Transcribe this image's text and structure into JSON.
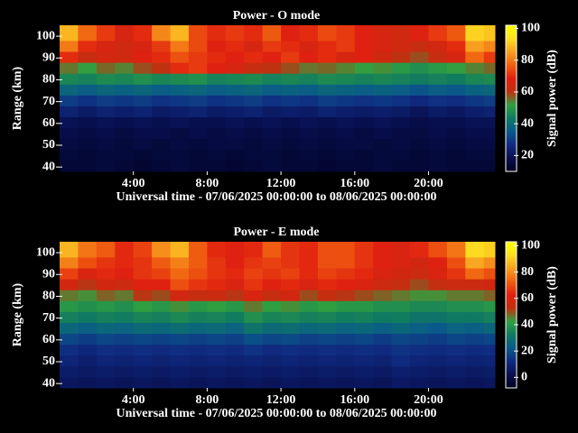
{
  "chart_data": [
    {
      "type": "heatmap",
      "title": "Power - O mode",
      "xlabel": "Universal time - 07/06/2025 00:00:00 to 08/06/2025 00:00:00",
      "ylabel": "Range (km)",
      "colorbar_label": "Signal power (dB)",
      "x_edges": [
        0,
        1,
        2,
        3,
        4,
        5,
        6,
        7,
        8,
        9,
        10,
        11,
        12,
        13,
        14,
        15,
        16,
        17,
        18,
        19,
        20,
        21,
        22,
        23,
        23.6
      ],
      "y_edges": [
        38,
        43,
        48,
        53,
        58,
        63,
        68,
        73,
        78,
        83,
        88,
        93,
        98,
        105
      ],
      "values": [
        [
          14,
          14,
          15,
          14,
          13,
          14,
          15,
          14,
          14,
          13,
          14,
          15,
          14,
          14,
          13,
          14,
          14,
          15,
          14,
          14,
          15,
          14,
          14,
          14
        ],
        [
          15,
          14,
          15,
          15,
          14,
          15,
          15,
          14,
          15,
          14,
          15,
          15,
          14,
          15,
          14,
          15,
          14,
          15,
          15,
          14,
          15,
          14,
          15,
          15
        ],
        [
          16,
          15,
          16,
          15,
          16,
          15,
          16,
          15,
          16,
          16,
          15,
          16,
          15,
          16,
          15,
          16,
          16,
          15,
          16,
          15,
          16,
          15,
          16,
          16
        ],
        [
          17,
          16,
          17,
          16,
          17,
          17,
          16,
          17,
          16,
          17,
          16,
          17,
          16,
          17,
          16,
          17,
          16,
          17,
          16,
          16,
          17,
          16,
          17,
          17
        ],
        [
          19,
          18,
          19,
          18,
          19,
          18,
          19,
          18,
          18,
          19,
          18,
          19,
          18,
          19,
          18,
          19,
          18,
          19,
          18,
          17,
          18,
          18,
          19,
          19
        ],
        [
          24,
          22,
          24,
          23,
          24,
          22,
          23,
          24,
          22,
          23,
          24,
          22,
          23,
          22,
          24,
          23,
          22,
          23,
          22,
          20,
          22,
          21,
          23,
          24
        ],
        [
          30,
          28,
          30,
          29,
          30,
          28,
          29,
          30,
          28,
          29,
          30,
          28,
          29,
          28,
          30,
          29,
          28,
          29,
          28,
          26,
          28,
          27,
          29,
          30
        ],
        [
          38,
          36,
          38,
          37,
          38,
          36,
          37,
          38,
          36,
          37,
          38,
          36,
          37,
          36,
          38,
          37,
          36,
          37,
          36,
          34,
          36,
          35,
          37,
          38
        ],
        [
          46,
          45,
          47,
          46,
          48,
          46,
          47,
          48,
          45,
          46,
          47,
          45,
          46,
          45,
          47,
          46,
          45,
          46,
          45,
          44,
          45,
          44,
          46,
          47
        ],
        [
          55,
          52,
          56,
          54,
          58,
          60,
          70,
          72,
          68,
          66,
          62,
          60,
          58,
          55,
          56,
          54,
          52,
          53,
          50,
          48,
          50,
          52,
          54,
          56
        ],
        [
          70,
          62,
          65,
          64,
          68,
          70,
          75,
          72,
          70,
          68,
          70,
          68,
          72,
          68,
          70,
          66,
          68,
          64,
          60,
          58,
          62,
          66,
          78,
          72
        ],
        [
          80,
          70,
          66,
          64,
          66,
          72,
          80,
          74,
          68,
          70,
          66,
          72,
          70,
          66,
          70,
          72,
          68,
          66,
          64,
          62,
          65,
          70,
          85,
          82
        ],
        [
          88,
          78,
          72,
          66,
          70,
          82,
          88,
          74,
          70,
          72,
          70,
          76,
          68,
          70,
          74,
          72,
          68,
          66,
          64,
          68,
          72,
          76,
          92,
          90
        ]
      ],
      "xlim": [
        0,
        23.6
      ],
      "ylim": [
        38,
        105
      ],
      "clim": [
        10,
        102
      ],
      "xticks": [
        {
          "value": 4,
          "label": "4:00"
        },
        {
          "value": 8,
          "label": "8:00"
        },
        {
          "value": 12,
          "label": "12:00"
        },
        {
          "value": 16,
          "label": "16:00"
        },
        {
          "value": 20,
          "label": "20:00"
        }
      ],
      "yticks": [
        40,
        50,
        60,
        70,
        80,
        90,
        100
      ],
      "cticks": [
        20,
        40,
        60,
        80,
        100
      ],
      "colormap": [
        "#00001e",
        "#081050",
        "#102a80",
        "#0a5a8a",
        "#107a60",
        "#30a040",
        "#c03010",
        "#e02010",
        "#f06010",
        "#f8a020",
        "#ffe020",
        "#ffff00"
      ]
    },
    {
      "type": "heatmap",
      "title": "Power - E mode",
      "xlabel": "Universal time - 07/06/2025 00:00:00 to 08/06/2025 00:00:00",
      "ylabel": "Range (km)",
      "colorbar_label": "Signal power (dB)",
      "x_edges": [
        0,
        1,
        2,
        3,
        4,
        5,
        6,
        7,
        8,
        9,
        10,
        11,
        12,
        13,
        14,
        15,
        16,
        17,
        18,
        19,
        20,
        21,
        22,
        23,
        23.6
      ],
      "y_edges": [
        38,
        43,
        48,
        53,
        58,
        63,
        68,
        73,
        78,
        83,
        88,
        93,
        98,
        105
      ],
      "values": [
        [
          5,
          4,
          5,
          4,
          5,
          4,
          5,
          4,
          5,
          4,
          5,
          4,
          5,
          4,
          5,
          4,
          5,
          4,
          6,
          5,
          4,
          5,
          4,
          5
        ],
        [
          7,
          6,
          7,
          6,
          7,
          6,
          7,
          6,
          7,
          6,
          7,
          6,
          7,
          6,
          7,
          6,
          7,
          6,
          8,
          7,
          6,
          7,
          6,
          7
        ],
        [
          10,
          8,
          10,
          9,
          10,
          9,
          10,
          9,
          10,
          9,
          10,
          9,
          10,
          9,
          10,
          9,
          10,
          9,
          12,
          10,
          9,
          10,
          9,
          10
        ],
        [
          13,
          11,
          13,
          12,
          13,
          12,
          13,
          12,
          13,
          12,
          14,
          12,
          13,
          12,
          13,
          12,
          13,
          12,
          14,
          13,
          12,
          13,
          12,
          13
        ],
        [
          18,
          16,
          18,
          17,
          18,
          17,
          18,
          17,
          18,
          17,
          20,
          18,
          19,
          17,
          18,
          17,
          18,
          16,
          18,
          17,
          16,
          18,
          17,
          18
        ],
        [
          26,
          24,
          26,
          25,
          27,
          26,
          28,
          26,
          27,
          25,
          30,
          27,
          28,
          26,
          27,
          25,
          26,
          24,
          26,
          24,
          22,
          25,
          24,
          26
        ],
        [
          34,
          32,
          34,
          33,
          35,
          34,
          36,
          34,
          35,
          33,
          38,
          35,
          36,
          34,
          35,
          33,
          34,
          32,
          33,
          30,
          30,
          32,
          32,
          34
        ],
        [
          40,
          38,
          40,
          38,
          42,
          40,
          44,
          40,
          42,
          40,
          46,
          42,
          44,
          40,
          42,
          40,
          40,
          38,
          38,
          36,
          36,
          38,
          38,
          40
        ],
        [
          46,
          44,
          48,
          46,
          52,
          50,
          58,
          54,
          56,
          52,
          60,
          54,
          58,
          50,
          54,
          52,
          50,
          48,
          46,
          44,
          44,
          46,
          46,
          48
        ],
        [
          58,
          52,
          58,
          56,
          62,
          62,
          70,
          66,
          64,
          60,
          66,
          62,
          64,
          60,
          64,
          62,
          60,
          56,
          54,
          50,
          54,
          56,
          56,
          58
        ],
        [
          68,
          60,
          64,
          62,
          66,
          68,
          74,
          70,
          66,
          64,
          68,
          66,
          68,
          64,
          68,
          66,
          64,
          60,
          58,
          56,
          60,
          66,
          74,
          70
        ],
        [
          78,
          70,
          66,
          64,
          66,
          72,
          78,
          72,
          66,
          62,
          66,
          68,
          66,
          64,
          70,
          70,
          66,
          62,
          60,
          58,
          62,
          70,
          84,
          80
        ],
        [
          86,
          76,
          72,
          64,
          68,
          80,
          86,
          72,
          64,
          62,
          64,
          72,
          66,
          64,
          70,
          70,
          66,
          62,
          60,
          64,
          70,
          76,
          92,
          90
        ]
      ],
      "xlim": [
        0,
        23.6
      ],
      "ylim": [
        38,
        105
      ],
      "clim": [
        -8,
        103
      ],
      "xticks": [
        {
          "value": 4,
          "label": "4:00"
        },
        {
          "value": 8,
          "label": "8:00"
        },
        {
          "value": 12,
          "label": "12:00"
        },
        {
          "value": 16,
          "label": "16:00"
        },
        {
          "value": 20,
          "label": "20:00"
        }
      ],
      "yticks": [
        40,
        50,
        60,
        70,
        80,
        90,
        100
      ],
      "cticks": [
        0,
        20,
        40,
        60,
        80,
        100
      ],
      "colormap": [
        "#00001e",
        "#081050",
        "#102a80",
        "#0a5a8a",
        "#107a60",
        "#30a040",
        "#c03010",
        "#e02010",
        "#f06010",
        "#f8a020",
        "#ffe020",
        "#ffff00"
      ]
    }
  ]
}
